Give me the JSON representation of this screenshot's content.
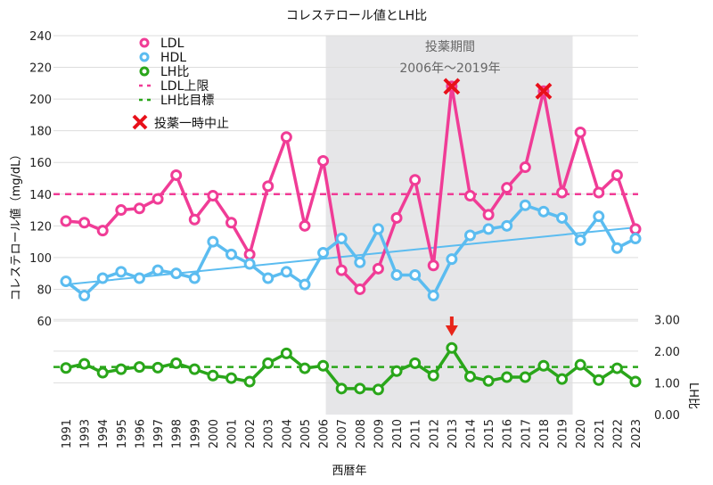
{
  "chart_data": {
    "type": "line",
    "title": "コレステロール値とLH比",
    "xlabel": "西暦年",
    "ylabel": "コレステロール値（mg/dL）",
    "y2label": "LH比",
    "categories": [
      "1991",
      "1993",
      "1994",
      "1995",
      "1996",
      "1997",
      "1998",
      "1999",
      "2000",
      "2001",
      "2002",
      "2003",
      "2004",
      "2005",
      "2006",
      "2007",
      "2008",
      "2009",
      "2010",
      "2011",
      "2012",
      "2013",
      "2014",
      "2015",
      "2016",
      "2017",
      "2018",
      "2019",
      "2020",
      "2021",
      "2022",
      "2023"
    ],
    "ylim": [
      60,
      240
    ],
    "yticks": [
      "60",
      "80",
      "100",
      "120",
      "140",
      "160",
      "180",
      "200",
      "220",
      "240"
    ],
    "y2lim": [
      0,
      3
    ],
    "y2ticks": [
      "0.00",
      "1.00",
      "2.00",
      "3.00"
    ],
    "grid": true,
    "legend_position": "top-left",
    "series": [
      {
        "name": "LDL",
        "axis": "left",
        "color": "#f03c96",
        "values": [
          123,
          122,
          117,
          130,
          131,
          137,
          152,
          124,
          139,
          122,
          102,
          145,
          176,
          120,
          161,
          92,
          80,
          93,
          125,
          149,
          95,
          208,
          139,
          127,
          144,
          157,
          205,
          141,
          179,
          141,
          152,
          118
        ]
      },
      {
        "name": "HDL",
        "axis": "left",
        "color": "#5bbcf0",
        "values": [
          85,
          76,
          87,
          91,
          87,
          92,
          90,
          87,
          110,
          102,
          96,
          87,
          91,
          83,
          103,
          112,
          97,
          118,
          89,
          89,
          76,
          99,
          114,
          118,
          120,
          133,
          129,
          125,
          111,
          126,
          106,
          112
        ]
      },
      {
        "name": "LH比",
        "axis": "right",
        "color": "#2aa61a",
        "values": [
          1.47,
          1.6,
          1.32,
          1.43,
          1.5,
          1.48,
          1.62,
          1.43,
          1.23,
          1.15,
          1.04,
          1.62,
          1.93,
          1.46,
          1.54,
          0.82,
          0.82,
          0.79,
          1.37,
          1.62,
          1.23,
          2.1,
          1.2,
          1.06,
          1.18,
          1.18,
          1.54,
          1.12,
          1.57,
          1.09,
          1.46,
          1.04
        ]
      }
    ],
    "reference_lines": [
      {
        "name": "LDL上限",
        "axis": "left",
        "value": 140,
        "color": "#f03c96"
      },
      {
        "name": "LH比目標",
        "axis": "right",
        "value": 1.5,
        "color": "#2aa61a"
      }
    ],
    "trendline": {
      "series": "HDL",
      "start": 83,
      "end": 119,
      "color": "#5bbcf0"
    },
    "shaded_region": {
      "label_line1": "投薬期間",
      "label_line2": "2006年〜2019年",
      "from": "2006",
      "to": "2019"
    },
    "markers": {
      "name": "投薬一時中止",
      "years": [
        "2013",
        "2018"
      ],
      "color": "#e8101a"
    },
    "arrow_marker_year": "2013"
  }
}
